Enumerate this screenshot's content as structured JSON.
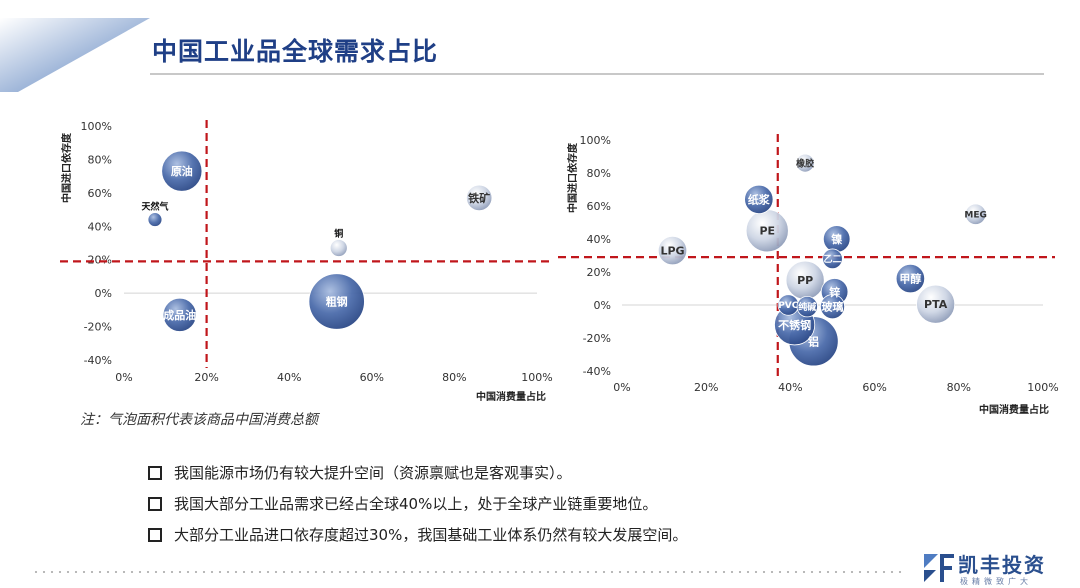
{
  "title": "中国工业品全球需求占比",
  "note": "注：气泡面积代表该商品中国消费总额",
  "bullets": [
    "我国能源市场仍有较大提升空间（资源禀赋也是客观事实）。",
    "我国大部分工业品需求已经占全球40%以上，处于全球产业链重要地位。",
    "大部分工业品进口依存度超过30%，我国基础工业体系仍然有较大发展空间。"
  ],
  "logo": {
    "name": "凯丰投资",
    "slogan": "极精微致广大"
  },
  "colors": {
    "title": "#1f3f86",
    "reference_line": "#c0161b",
    "bubble_dark": "#3a5ca0",
    "bubble_light": "#b9c3d6"
  },
  "chart_data": [
    {
      "type": "bubble",
      "xlabel": "中国消费量占比",
      "ylabel": "中国进口依存度",
      "xlim": [
        0,
        100
      ],
      "ylim": [
        -40,
        100
      ],
      "x_ticks": [
        "0%",
        "20%",
        "40%",
        "60%",
        "80%",
        "100%"
      ],
      "y_ticks": [
        "-40%",
        "-20%",
        "0%",
        "20%",
        "40%",
        "60%",
        "80%",
        "100%"
      ],
      "reference_lines": {
        "x": 20,
        "y": 19
      },
      "points": [
        {
          "name": "原油",
          "x": 14,
          "y": 73,
          "size": 5,
          "tone": "dark"
        },
        {
          "name": "天然气",
          "x": 7.5,
          "y": 44,
          "size": 0.6,
          "tone": "dark"
        },
        {
          "name": "铁矿",
          "x": 86,
          "y": 57,
          "size": 2,
          "tone": "light"
        },
        {
          "name": "铜",
          "x": 52,
          "y": 27,
          "size": 0.9,
          "tone": "light"
        },
        {
          "name": "成品油",
          "x": 13.5,
          "y": -13,
          "size": 3.4,
          "tone": "dark"
        },
        {
          "name": "粗钢",
          "x": 51.5,
          "y": -5,
          "size": 9.5,
          "tone": "dark"
        }
      ]
    },
    {
      "type": "bubble",
      "xlabel": "中国消费量占比",
      "ylabel": "中国进口依存度",
      "xlim": [
        0,
        100
      ],
      "ylim": [
        -40,
        100
      ],
      "x_ticks": [
        "0%",
        "20%",
        "40%",
        "60%",
        "80%",
        "100%"
      ],
      "y_ticks": [
        "-40%",
        "-20%",
        "0%",
        "20%",
        "40%",
        "60%",
        "80%",
        "100%"
      ],
      "reference_lines": {
        "x": 37,
        "y": 29
      },
      "points": [
        {
          "name": "橡胶",
          "x": 43.5,
          "y": 86,
          "size": 1,
          "tone": "light"
        },
        {
          "name": "纸浆",
          "x": 32.5,
          "y": 64,
          "size": 2.5,
          "tone": "dark"
        },
        {
          "name": "MEG",
          "x": 84,
          "y": 55,
          "size": 1.3,
          "tone": "light"
        },
        {
          "name": "PE",
          "x": 34.5,
          "y": 45,
          "size": 5.5,
          "tone": "light"
        },
        {
          "name": "LPG",
          "x": 12,
          "y": 33,
          "size": 2.5,
          "tone": "light"
        },
        {
          "name": "镍",
          "x": 51,
          "y": 40,
          "size": 2.2,
          "tone": "dark"
        },
        {
          "name": "乙二",
          "x": 50,
          "y": 28,
          "size": 1.2,
          "tone": "dark"
        },
        {
          "name": "甲醇",
          "x": 68.5,
          "y": 16,
          "size": 2.5,
          "tone": "dark"
        },
        {
          "name": "PTA",
          "x": 74.5,
          "y": 0.5,
          "size": 4.5,
          "tone": "light"
        },
        {
          "name": "PP",
          "x": 43.5,
          "y": 15,
          "size": 4.5,
          "tone": "light"
        },
        {
          "name": "锌",
          "x": 50.5,
          "y": 8,
          "size": 2.2,
          "tone": "dark"
        },
        {
          "name": "PVC",
          "x": 39.5,
          "y": 0,
          "size": 1.3,
          "tone": "dark"
        },
        {
          "name": "纯碱",
          "x": 44,
          "y": -1,
          "size": 1.3,
          "tone": "dark"
        },
        {
          "name": "玻璃",
          "x": 50,
          "y": -1,
          "size": 1.8,
          "tone": "dark"
        },
        {
          "name": "不锈钢",
          "x": 41,
          "y": -12,
          "size": 5,
          "tone": "dark"
        },
        {
          "name": "铝",
          "x": 45.5,
          "y": -22,
          "size": 7.5,
          "tone": "dark"
        }
      ]
    }
  ]
}
